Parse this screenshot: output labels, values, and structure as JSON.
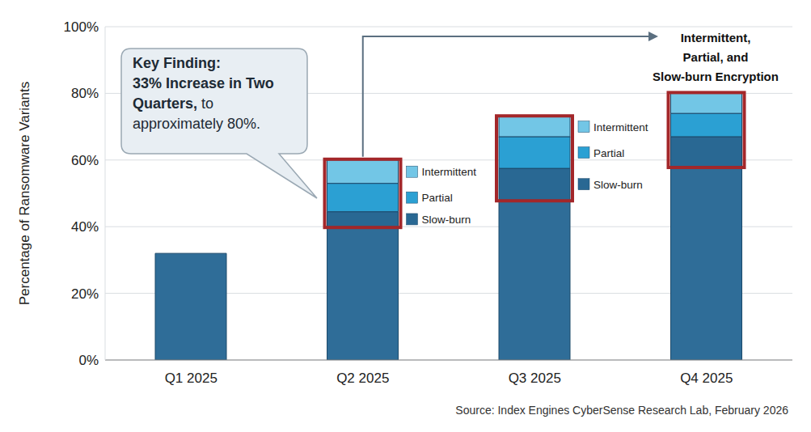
{
  "chart_data": {
    "type": "bar",
    "stacked": true,
    "categories": [
      "Q1 2025",
      "Q2 2025",
      "Q3 2025",
      "Q4 2025"
    ],
    "values": [
      32,
      40,
      48,
      58
    ],
    "color": "#2f6d98",
    "series": [
      {
        "name": "Intermittent",
        "color": "#72c6e6",
        "values": [
          null,
          7,
          6,
          6
        ]
      },
      {
        "name": "Partial",
        "color": "#2ba0d3",
        "values": [
          null,
          8.5,
          9.5,
          7
        ]
      },
      {
        "name": "Slow-burn",
        "color": "#296893",
        "values": [
          null,
          4.5,
          9.5,
          9
        ]
      }
    ],
    "y_label": "Percentage of Ransomware Variants",
    "ylim": [
      0,
      100
    ],
    "yticks": [
      {
        "value": 0,
        "label": "0%"
      },
      {
        "value": 20,
        "label": "20%"
      },
      {
        "value": 40,
        "label": "40%"
      },
      {
        "value": 60,
        "label": "60%"
      },
      {
        "value": 80,
        "label": "80%"
      },
      {
        "value": 100,
        "label": "100%"
      }
    ],
    "grid": true,
    "callout": {
      "heading": "Key Finding:",
      "highlight": "33% Increase in Two Quarters,",
      "text": "to approximately 80%."
    },
    "arrow_label": [
      "Intermittent,",
      "Partial, and",
      "Slow-burn Encryption"
    ],
    "source": "Source: Index Engines CyberSense Research Lab, February 2026"
  }
}
